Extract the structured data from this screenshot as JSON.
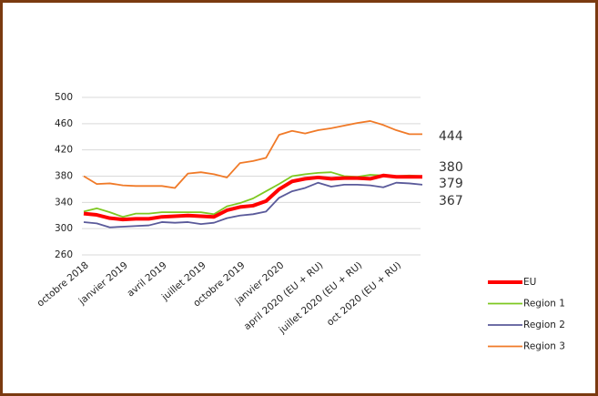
{
  "chart_data": {
    "type": "line",
    "categories": [
      "octobre 2018",
      null,
      null,
      "janvier 2019",
      null,
      null,
      "avril 2019",
      null,
      null,
      "juillet 2019",
      null,
      null,
      "octobre 2019",
      null,
      null,
      "janvier 2020",
      null,
      null,
      "april 2020 (EU + RU)",
      null,
      null,
      "juillet 2020 (EU + RU)",
      null,
      null,
      "oct 2020 (EU + RU)",
      null,
      null
    ],
    "ylim": [
      260,
      500
    ],
    "yticks": [
      260,
      300,
      340,
      380,
      420,
      460,
      500
    ],
    "grid": true,
    "legend": "lower right",
    "series": [
      {
        "name": "EU",
        "color": "#ff0000",
        "end_label": 379,
        "values": [
          323,
          321,
          316,
          314,
          315,
          315,
          318,
          319,
          320,
          319,
          318,
          328,
          333,
          335,
          342,
          360,
          372,
          376,
          378,
          376,
          377,
          377,
          376,
          381,
          379,
          379,
          379
        ]
      },
      {
        "name": "Region 1",
        "color": "#7ec820",
        "end_label": 380,
        "values": [
          326,
          331,
          325,
          318,
          323,
          323,
          325,
          325,
          325,
          325,
          322,
          334,
          339,
          346,
          357,
          368,
          380,
          383,
          385,
          386,
          380,
          379,
          382,
          381,
          380,
          381,
          380
        ]
      },
      {
        "name": "Region 2",
        "color": "#5a5a9a",
        "end_label": 367,
        "values": [
          310,
          308,
          302,
          303,
          304,
          305,
          310,
          309,
          310,
          307,
          309,
          316,
          320,
          322,
          326,
          347,
          357,
          362,
          370,
          364,
          367,
          367,
          366,
          363,
          370,
          369,
          367
        ]
      },
      {
        "name": "Region 3",
        "color": "#f07a28",
        "end_label": 444,
        "values": [
          380,
          368,
          369,
          366,
          365,
          365,
          365,
          362,
          384,
          386,
          383,
          378,
          400,
          403,
          408,
          443,
          449,
          445,
          450,
          453,
          457,
          461,
          464,
          458,
          450,
          444,
          444
        ]
      }
    ]
  }
}
